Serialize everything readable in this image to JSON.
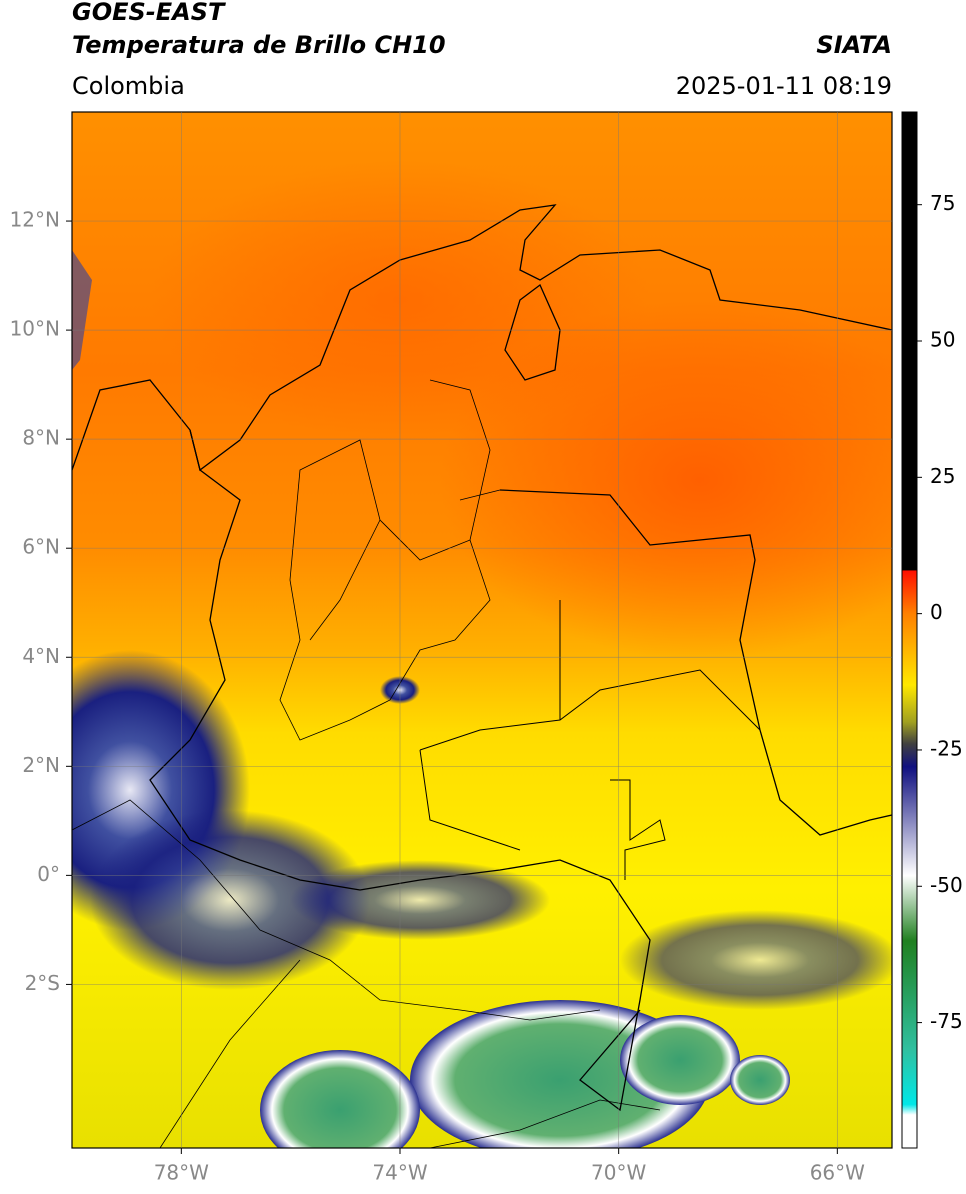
{
  "header": {
    "title": "GOES-EAST",
    "subtitle": "Temperatura de Brillo CH10",
    "source": "SIATA",
    "region": "Colombia",
    "datetime": "2025-01-11 08:19"
  },
  "map": {
    "lonlim": [
      -80,
      -65
    ],
    "latlim": [
      -5,
      14
    ],
    "lonticks": [
      {
        "value": -78,
        "label": "78°W"
      },
      {
        "value": -74,
        "label": "74°W"
      },
      {
        "value": -70,
        "label": "70°W"
      },
      {
        "value": -66,
        "label": "66°W"
      }
    ],
    "latticks": [
      {
        "value": 12,
        "label": "12°N"
      },
      {
        "value": 10,
        "label": "10°N"
      },
      {
        "value": 8,
        "label": "8°N"
      },
      {
        "value": 6,
        "label": "6°N"
      },
      {
        "value": 4,
        "label": "4°N"
      },
      {
        "value": 2,
        "label": "2°N"
      },
      {
        "value": 0,
        "label": "0°"
      },
      {
        "value": -2,
        "label": "2°S"
      }
    ],
    "grid": true
  },
  "colorbar": {
    "lim": [
      -98,
      92
    ],
    "ticks": [
      75,
      50,
      25,
      0,
      -25,
      -50,
      -75
    ]
  }
}
